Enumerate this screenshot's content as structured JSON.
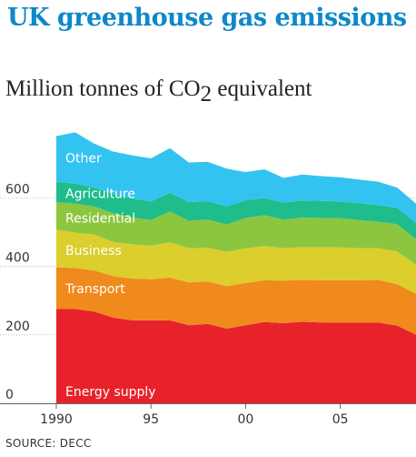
{
  "title": "UK  greenhouse gas emissions",
  "subtitle_main": "Million tonnes of CO",
  "subtitle_sub": "2",
  "subtitle_tail": " equivalent",
  "source": "SOURCE: DECC",
  "chart_data": {
    "type": "area",
    "stacked": true,
    "x": [
      1990,
      1991,
      1992,
      1993,
      1994,
      1995,
      1996,
      1997,
      1998,
      1999,
      2000,
      2001,
      2002,
      2003,
      2004,
      2005,
      2006,
      2007,
      2008,
      2009
    ],
    "ylim": [
      0,
      800
    ],
    "yticks": [
      0,
      200,
      400,
      600
    ],
    "xticks": [
      1990,
      1995,
      2000,
      2005
    ],
    "xtick_labels": [
      "1990",
      "95",
      "00",
      "05"
    ],
    "grid": "horizontal",
    "legend": "labels inside areas",
    "series": [
      {
        "name": "Energy supply",
        "color": "#e8222b",
        "values": [
          275,
          275,
          268,
          250,
          242,
          242,
          242,
          228,
          232,
          218,
          228,
          237,
          234,
          238,
          236,
          236,
          236,
          236,
          227,
          200
        ]
      },
      {
        "name": "Transport",
        "color": "#f08a1d",
        "values": [
          122,
          120,
          120,
          121,
          122,
          120,
          125,
          125,
          124,
          124,
          123,
          122,
          124,
          122,
          123,
          123,
          123,
          124,
          121,
          120
        ]
      },
      {
        "name": "Business",
        "color": "#dcce2c",
        "values": [
          110,
          103,
          105,
          100,
          100,
          98,
          103,
          100,
          98,
          100,
          102,
          100,
          95,
          96,
          96,
          96,
          94,
          93,
          95,
          85
        ]
      },
      {
        "name": "Residential",
        "color": "#8cc63f",
        "values": [
          80,
          85,
          82,
          84,
          79,
          75,
          90,
          80,
          82,
          80,
          88,
          90,
          83,
          86,
          86,
          85,
          82,
          77,
          80,
          74
        ]
      },
      {
        "name": "Agriculture",
        "color": "#1fbc8c",
        "values": [
          60,
          58,
          55,
          56,
          55,
          54,
          55,
          54,
          54,
          53,
          52,
          50,
          50,
          50,
          50,
          49,
          49,
          48,
          48,
          47
        ]
      },
      {
        "name": "Other",
        "color": "#33c3f0",
        "values": [
          133,
          150,
          128,
          124,
          126,
          126,
          130,
          116,
          115,
          110,
          82,
          84,
          72,
          76,
          72,
          71,
          69,
          69,
          59,
          57
        ]
      }
    ]
  }
}
